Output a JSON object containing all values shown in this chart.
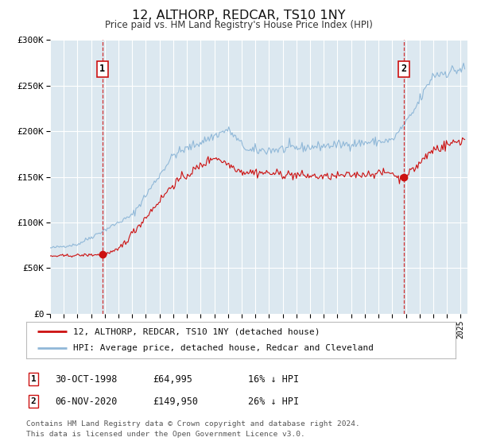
{
  "title": "12, ALTHORP, REDCAR, TS10 1NY",
  "subtitle": "Price paid vs. HM Land Registry's House Price Index (HPI)",
  "background_color": "#ffffff",
  "plot_background_color": "#dce8f0",
  "grid_color": "#ffffff",
  "hpi_color": "#90b8d8",
  "price_color": "#cc1111",
  "ylim_min": 0,
  "ylim_max": 300000,
  "yticks": [
    0,
    50000,
    100000,
    150000,
    200000,
    250000,
    300000
  ],
  "ytick_labels": [
    "£0",
    "£50K",
    "£100K",
    "£150K",
    "£200K",
    "£250K",
    "£300K"
  ],
  "sale1_date_num": 1998.83,
  "sale1_price": 64995,
  "sale2_date_num": 2020.84,
  "sale2_price": 149950,
  "legend_label_price": "12, ALTHORP, REDCAR, TS10 1NY (detached house)",
  "legend_label_hpi": "HPI: Average price, detached house, Redcar and Cleveland",
  "annotation1_date": "30-OCT-1998",
  "annotation1_price": "£64,995",
  "annotation1_hpi": "16% ↓ HPI",
  "annotation2_date": "06-NOV-2020",
  "annotation2_price": "£149,950",
  "annotation2_hpi": "26% ↓ HPI",
  "footer": "Contains HM Land Registry data © Crown copyright and database right 2024.\nThis data is licensed under the Open Government Licence v3.0.",
  "xmin": 1995.0,
  "xmax": 2025.5
}
